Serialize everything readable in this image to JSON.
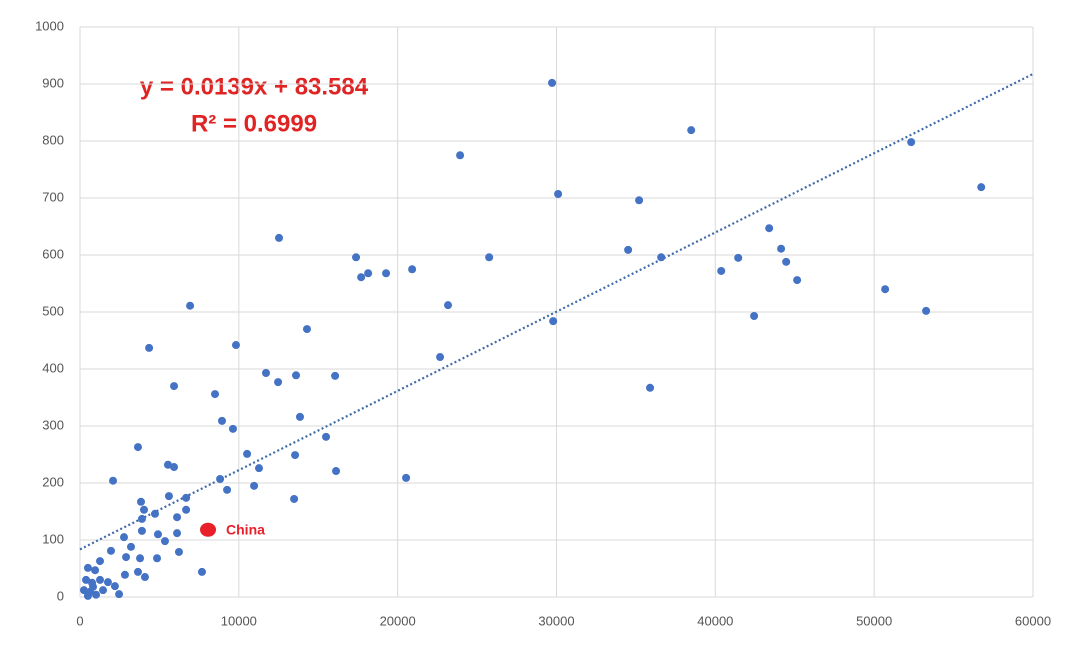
{
  "chart_data": {
    "type": "scatter",
    "equation": "y = 0.0139x + 83.584",
    "r_squared": "R² = 0.6999",
    "trendline": {
      "slope": 0.0139,
      "intercept": 83.584,
      "color": "#3f6aa8"
    },
    "x": [
      29720,
      38480,
      23930,
      30100,
      35200,
      52330,
      56740,
      12530,
      43390,
      34510,
      44140,
      44460,
      41440,
      36590,
      25760,
      17380,
      17700,
      18140,
      19270,
      20910,
      40370,
      45150,
      50690,
      53270,
      42440,
      29790,
      23170,
      6930,
      14290,
      4350,
      9820,
      22670,
      5920,
      35890,
      11710,
      13600,
      16060,
      12470,
      8500,
      13850,
      8940,
      9630,
      15490,
      3650,
      10520,
      13540,
      5540,
      5920,
      11270,
      16120,
      2080,
      20530,
      8820,
      10960,
      9260,
      13480,
      5600,
      6680,
      3840,
      4030,
      6680,
      4720,
      3900,
      6110,
      2770,
      4910,
      5350,
      6110,
      3900,
      3210,
      6230,
      1950,
      2900,
      3780,
      4850,
      1260,
      950,
      500,
      7680,
      3650,
      4090,
      2830,
      380,
      760,
      1260,
      1760,
      2200,
      250,
      630,
      1010,
      1450,
      2460,
      820,
      500
    ],
    "values": [
      902,
      819,
      775,
      707,
      696,
      798,
      719,
      630,
      647,
      609,
      611,
      588,
      595,
      596,
      596,
      596,
      561,
      568,
      568,
      575,
      572,
      556,
      540,
      502,
      493,
      484,
      512,
      511,
      470,
      437,
      442,
      421,
      370,
      367,
      393,
      389,
      388,
      377,
      356,
      316,
      309,
      295,
      281,
      263,
      251,
      249,
      232,
      228,
      226,
      221,
      204,
      209,
      207,
      195,
      188,
      172,
      177,
      174,
      167,
      153,
      153,
      146,
      137,
      140,
      105,
      110,
      98,
      112,
      116,
      88,
      79,
      81,
      70,
      68,
      68,
      63,
      47,
      51,
      44,
      44,
      35,
      39,
      30,
      25,
      30,
      26,
      19,
      12,
      9,
      4,
      12,
      5,
      18,
      2
    ],
    "color": "#4472c4",
    "highlight": {
      "label": "China",
      "x": 8060,
      "value": 118,
      "color": "#e8202a"
    },
    "xlim": [
      0,
      60000
    ],
    "xticks": [
      0,
      10000,
      20000,
      30000,
      40000,
      50000,
      60000
    ],
    "ylim": [
      0,
      1000
    ],
    "yticks": [
      0,
      100,
      200,
      300,
      400,
      500,
      600,
      700,
      800,
      900,
      1000
    ],
    "grid": true
  }
}
